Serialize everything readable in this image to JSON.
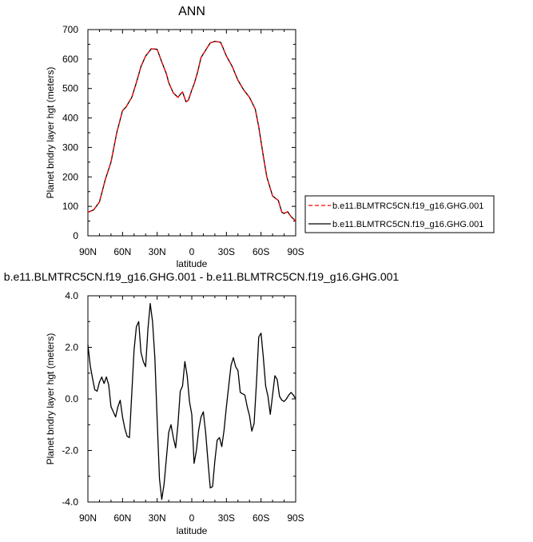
{
  "chart_data": [
    {
      "type": "line",
      "title": "ANN",
      "xlabel": "latitude",
      "ylabel": "Planet bndry layer hgt (meters)",
      "x_ticks": [
        "90N",
        "60N",
        "30N",
        "0",
        "30S",
        "60S",
        "90S"
      ],
      "y_ticks": [
        "0",
        "100",
        "200",
        "300",
        "400",
        "500",
        "600",
        "700"
      ],
      "xlim": [
        90,
        -90
      ],
      "ylim": [
        0,
        700
      ],
      "legend_position": "right",
      "series": [
        {
          "name": "b.e11.BLMTRC5CN.f19_g16.GHG.001",
          "color": "#ff0000",
          "dash": "dashed",
          "x": [
            90,
            85,
            80,
            75,
            70,
            65,
            60,
            57,
            52,
            48,
            44,
            40,
            35,
            30,
            26,
            22,
            20,
            16,
            12,
            10,
            8,
            5,
            3,
            0,
            -2,
            -5,
            -8,
            -12,
            -16,
            -20,
            -25,
            -30,
            -35,
            -40,
            -45,
            -50,
            -55,
            -58,
            -62,
            -65,
            -70,
            -75,
            -78,
            -80,
            -83,
            -86,
            -88,
            -90
          ],
          "y": [
            80,
            88,
            115,
            190,
            250,
            350,
            425,
            437,
            470,
            520,
            575,
            610,
            635,
            633,
            590,
            550,
            520,
            485,
            470,
            480,
            488,
            455,
            460,
            495,
            515,
            555,
            605,
            630,
            655,
            660,
            657,
            610,
            575,
            528,
            495,
            470,
            430,
            370,
            270,
            200,
            135,
            120,
            80,
            76,
            82,
            65,
            58,
            50
          ]
        },
        {
          "name": "b.e11.BLMTRC5CN.f19_g16.GHG.001",
          "color": "#000000",
          "dash": "solid",
          "x": [
            90,
            85,
            80,
            75,
            70,
            65,
            60,
            57,
            52,
            48,
            44,
            40,
            35,
            30,
            26,
            22,
            20,
            16,
            12,
            10,
            8,
            5,
            3,
            0,
            -2,
            -5,
            -8,
            -12,
            -16,
            -20,
            -25,
            -30,
            -35,
            -40,
            -45,
            -50,
            -55,
            -58,
            -62,
            -65,
            -70,
            -75,
            -78,
            -80,
            -83,
            -86,
            -88,
            -90
          ],
          "y": [
            80,
            88,
            115,
            190,
            250,
            350,
            425,
            437,
            470,
            520,
            575,
            610,
            635,
            633,
            590,
            550,
            520,
            485,
            470,
            480,
            488,
            455,
            460,
            495,
            515,
            555,
            605,
            630,
            655,
            660,
            657,
            610,
            575,
            528,
            495,
            470,
            430,
            370,
            270,
            200,
            135,
            120,
            80,
            76,
            82,
            65,
            58,
            50
          ]
        }
      ]
    },
    {
      "type": "line",
      "title": "b.e11.BLMTRC5CN.f19_g16.GHG.001 - b.e11.BLMTRC5CN.f19_g16.GHG.001",
      "xlabel": "latitude",
      "ylabel": "Planet bndry layer hgt (meters)",
      "x_ticks": [
        "90N",
        "60N",
        "30N",
        "0",
        "30S",
        "60S",
        "90S"
      ],
      "y_ticks": [
        "-4.0",
        "-2.0",
        "0.0",
        "2.0",
        "4.0"
      ],
      "xlim": [
        90,
        -90
      ],
      "ylim": [
        -4,
        4
      ],
      "series": [
        {
          "color": "#000000",
          "dash": "solid",
          "x": [
            90,
            88,
            86,
            84,
            82,
            80,
            78,
            76,
            74,
            72,
            70,
            68,
            66,
            64,
            62,
            60,
            58,
            56,
            54,
            52,
            50,
            48,
            46,
            44,
            42,
            40,
            38,
            36,
            34,
            32,
            30,
            28,
            26,
            24,
            22,
            20,
            18,
            16,
            14,
            12,
            10,
            8,
            6,
            4,
            2,
            0,
            -2,
            -4,
            -6,
            -8,
            -10,
            -12,
            -14,
            -16,
            -18,
            -20,
            -22,
            -24,
            -26,
            -28,
            -30,
            -32,
            -34,
            -36,
            -38,
            -40,
            -42,
            -44,
            -46,
            -48,
            -50,
            -52,
            -54,
            -56,
            -58,
            -60,
            -62,
            -64,
            -66,
            -68,
            -70,
            -72,
            -74,
            -76,
            -78,
            -80,
            -82,
            -84,
            -86,
            -88,
            -90
          ],
          "y": [
            2.1,
            1.3,
            0.8,
            0.35,
            0.3,
            0.65,
            0.85,
            0.6,
            0.85,
            0.55,
            -0.3,
            -0.5,
            -0.7,
            -0.3,
            -0.05,
            -0.7,
            -1.15,
            -1.45,
            -1.5,
            0.2,
            1.9,
            2.8,
            3.0,
            1.8,
            1.45,
            1.25,
            2.7,
            3.7,
            3.0,
            1.6,
            -0.8,
            -3.1,
            -3.9,
            -3.3,
            -2.3,
            -1.3,
            -1.0,
            -1.5,
            -1.9,
            -1.0,
            0.3,
            0.5,
            1.45,
            0.9,
            -0.1,
            -0.6,
            -2.5,
            -2.0,
            -1.2,
            -0.7,
            -0.5,
            -1.3,
            -2.4,
            -3.45,
            -3.4,
            -2.4,
            -1.6,
            -1.5,
            -1.85,
            -1.2,
            -0.3,
            0.5,
            1.3,
            1.6,
            1.25,
            1.1,
            0.25,
            0.2,
            0.15,
            -0.3,
            -0.65,
            -1.25,
            -0.95,
            0.6,
            2.4,
            2.55,
            1.6,
            0.5,
            0.1,
            -0.6,
            0.15,
            0.9,
            0.75,
            0.1,
            -0.05,
            -0.1,
            0.0,
            0.15,
            0.25,
            0.15,
            0.0
          ]
        }
      ]
    }
  ]
}
